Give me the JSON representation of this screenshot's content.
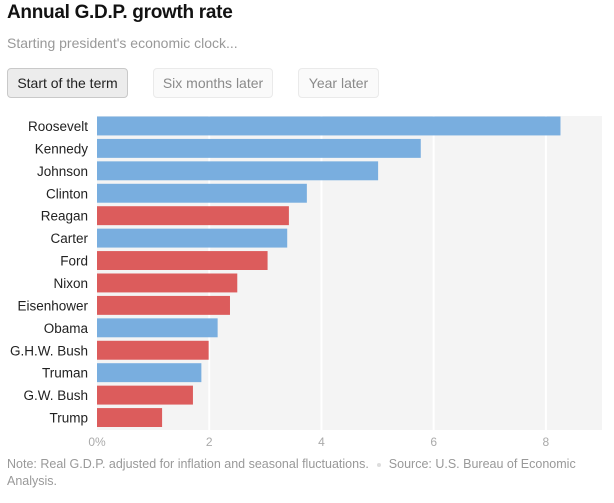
{
  "header": {
    "title": "Annual G.D.P. growth rate",
    "subtitle": "Starting president's economic clock..."
  },
  "toggle": {
    "buttons": [
      {
        "label": "Start of the term",
        "active": true
      },
      {
        "label": "Six months later",
        "active": false
      },
      {
        "label": "Year later",
        "active": false
      }
    ]
  },
  "colors": {
    "democrat": "#79aedf",
    "republican": "#dc5c5c",
    "plot_background": "#f4f4f4",
    "gridline": "#ffffff",
    "label": "#222222",
    "tick": "#aaaaaa"
  },
  "chart_data": {
    "type": "bar",
    "orientation": "horizontal",
    "title": "Annual G.D.P. growth rate",
    "xlabel": "",
    "ylabel": "",
    "xlim": [
      0,
      9
    ],
    "xticks": [
      0,
      2,
      4,
      6,
      8
    ],
    "xtick_labels": [
      "0%",
      "2",
      "4",
      "6",
      "8"
    ],
    "grid": true,
    "categories": [
      "Roosevelt",
      "Kennedy",
      "Johnson",
      "Clinton",
      "Reagan",
      "Carter",
      "Ford",
      "Nixon",
      "Eisenhower",
      "Obama",
      "G.H.W. Bush",
      "Truman",
      "G.W. Bush",
      "Trump"
    ],
    "values": [
      8.26,
      5.77,
      5.01,
      3.74,
      3.42,
      3.39,
      3.04,
      2.5,
      2.37,
      2.15,
      1.99,
      1.86,
      1.71,
      1.16
    ],
    "party": [
      "democrat",
      "democrat",
      "democrat",
      "democrat",
      "republican",
      "democrat",
      "republican",
      "republican",
      "republican",
      "democrat",
      "republican",
      "democrat",
      "republican",
      "republican"
    ]
  },
  "footer": {
    "note": "Note: Real G.D.P. adjusted for inflation and seasonal fluctuations.",
    "source": "Source: U.S. Bureau of Economic Analysis."
  }
}
